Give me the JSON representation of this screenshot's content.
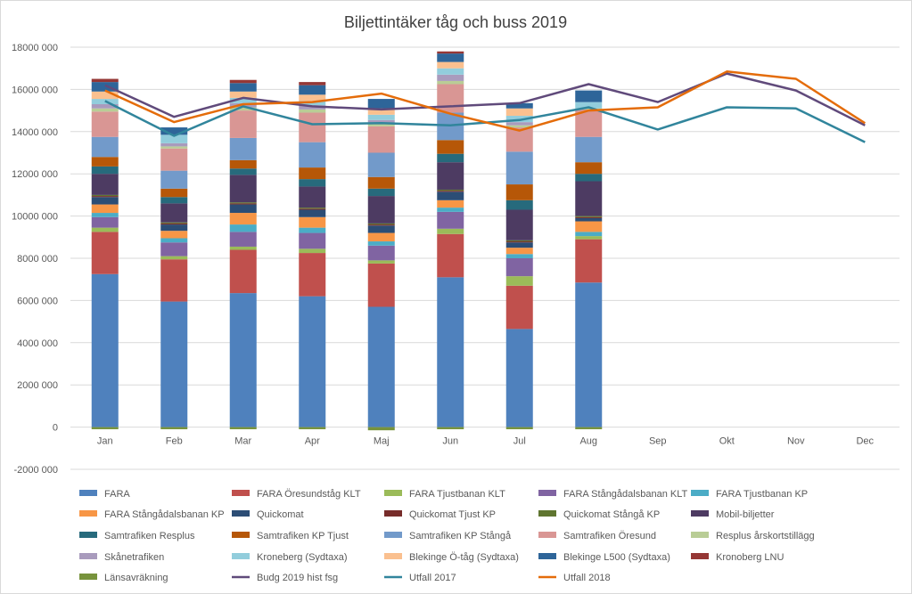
{
  "chart_data": {
    "type": "bar",
    "stacked": true,
    "title": "Biljettintäker tåg och buss 2019",
    "xlabel": "",
    "ylabel": "",
    "categories": [
      "Jan",
      "Feb",
      "Mar",
      "Apr",
      "Maj",
      "Jun",
      "Jul",
      "Aug",
      "Sep",
      "Okt",
      "Nov",
      "Dec"
    ],
    "ylim": [
      -2000000,
      18000000
    ],
    "yticks": [
      -2000000,
      0,
      2000000,
      4000000,
      6000000,
      8000000,
      10000000,
      12000000,
      14000000,
      16000000,
      18000000
    ],
    "ytick_labels": [
      "-2000 000",
      "0",
      "2000 000",
      "4000 000",
      "6000 000",
      "8000 000",
      "10000 000",
      "12000 000",
      "14000 000",
      "16000 000",
      "18000 000"
    ],
    "gridlines": true,
    "legend_position": "bottom",
    "series": [
      {
        "name": "FARA",
        "kind": "bar",
        "color": "#4f81bd",
        "values": [
          7250000,
          5950000,
          6350000,
          6200000,
          5700000,
          7100000,
          4650000,
          6850000,
          null,
          null,
          null,
          null
        ]
      },
      {
        "name": "FARA Öresundståg KLT",
        "kind": "bar",
        "color": "#c0504d",
        "values": [
          2000000,
          2000000,
          2050000,
          2050000,
          2050000,
          2050000,
          2050000,
          2050000,
          null,
          null,
          null,
          null
        ]
      },
      {
        "name": "FARA Tjustbanan KLT",
        "kind": "bar",
        "color": "#9bbb59",
        "values": [
          200000,
          150000,
          150000,
          200000,
          150000,
          250000,
          450000,
          150000,
          null,
          null,
          null,
          null
        ]
      },
      {
        "name": "FARA Stångådalsbanan KLT",
        "kind": "bar",
        "color": "#8064a2",
        "values": [
          500000,
          650000,
          700000,
          750000,
          700000,
          800000,
          850000,
          0,
          null,
          null,
          null,
          null
        ]
      },
      {
        "name": "FARA Tjustbanan KP",
        "kind": "bar",
        "color": "#4bacc6",
        "values": [
          200000,
          200000,
          350000,
          250000,
          200000,
          200000,
          200000,
          200000,
          null,
          null,
          null,
          null
        ]
      },
      {
        "name": "FARA Stångådalsbanan KP",
        "kind": "bar",
        "color": "#f79646",
        "values": [
          400000,
          350000,
          550000,
          500000,
          400000,
          350000,
          300000,
          500000,
          null,
          null,
          null,
          null
        ]
      },
      {
        "name": "Quickomat",
        "kind": "bar",
        "color": "#2c4d75",
        "values": [
          350000,
          300000,
          400000,
          350000,
          350000,
          400000,
          250000,
          150000,
          null,
          null,
          null,
          null
        ]
      },
      {
        "name": "Quickomat Tjust KP",
        "kind": "bar",
        "color": "#772c2a",
        "values": [
          50000,
          50000,
          50000,
          50000,
          50000,
          50000,
          50000,
          50000,
          null,
          null,
          null,
          null
        ]
      },
      {
        "name": "Quickomat Stångå KP",
        "kind": "bar",
        "color": "#5f7530",
        "values": [
          50000,
          50000,
          50000,
          50000,
          50000,
          50000,
          50000,
          50000,
          null,
          null,
          null,
          null
        ]
      },
      {
        "name": "Mobil-biljetter",
        "kind": "bar",
        "color": "#4d3b62",
        "values": [
          1000000,
          900000,
          1300000,
          1000000,
          1300000,
          1300000,
          1450000,
          1650000,
          null,
          null,
          null,
          null
        ]
      },
      {
        "name": "Samtrafiken Resplus",
        "kind": "bar",
        "color": "#276a7c",
        "values": [
          350000,
          300000,
          300000,
          350000,
          350000,
          400000,
          450000,
          350000,
          null,
          null,
          null,
          null
        ]
      },
      {
        "name": "Samtrafiken KP Tjust",
        "kind": "bar",
        "color": "#b65708",
        "values": [
          450000,
          400000,
          400000,
          550000,
          550000,
          650000,
          750000,
          550000,
          null,
          null,
          null,
          null
        ]
      },
      {
        "name": "Samtrafiken KP Stångå",
        "kind": "bar",
        "color": "#729aca",
        "values": [
          950000,
          850000,
          1050000,
          1200000,
          1150000,
          1300000,
          1550000,
          1200000,
          null,
          null,
          null,
          null
        ]
      },
      {
        "name": "Samtrafiken Öresund",
        "kind": "bar",
        "color": "#d99694",
        "values": [
          1200000,
          1050000,
          1300000,
          1400000,
          1250000,
          1350000,
          1150000,
          1300000,
          null,
          null,
          null,
          null
        ]
      },
      {
        "name": "Resplus årskortstillägg",
        "kind": "bar",
        "color": "#b9cd96",
        "values": [
          150000,
          100000,
          150000,
          150000,
          100000,
          150000,
          100000,
          50000,
          null,
          null,
          null,
          null
        ]
      },
      {
        "name": "Skånetrafiken",
        "kind": "bar",
        "color": "#a99bbd",
        "values": [
          200000,
          150000,
          200000,
          200000,
          200000,
          300000,
          150000,
          0,
          null,
          null,
          null,
          null
        ]
      },
      {
        "name": "Kroneberg (Sydtaxa)",
        "kind": "bar",
        "color": "#92cddc",
        "values": [
          250000,
          400000,
          250000,
          200000,
          250000,
          300000,
          300000,
          300000,
          null,
          null,
          null,
          null
        ]
      },
      {
        "name": "Blekinge Ö-tåg  (Sydtaxa)",
        "kind": "bar",
        "color": "#fac08f",
        "values": [
          350000,
          0,
          300000,
          300000,
          300000,
          300000,
          350000,
          0,
          null,
          null,
          null,
          null
        ]
      },
      {
        "name": "Blekinge L500  (Sydtaxa)",
        "kind": "bar",
        "color": "#2e6599",
        "values": [
          450000,
          350000,
          400000,
          450000,
          450000,
          400000,
          250000,
          550000,
          null,
          null,
          null,
          null
        ]
      },
      {
        "name": "Kronoberg LNU",
        "kind": "bar",
        "color": "#953735",
        "values": [
          150000,
          0,
          150000,
          150000,
          0,
          100000,
          0,
          0,
          null,
          null,
          null,
          null
        ]
      },
      {
        "name": "Länsavräkning",
        "kind": "bar",
        "color": "#77933c",
        "values": [
          -100000,
          -100000,
          -100000,
          -100000,
          -150000,
          -100000,
          -100000,
          -100000,
          null,
          null,
          null,
          null
        ]
      },
      {
        "name": "Budg 2019 hist fsg",
        "kind": "line",
        "color": "#604a7b",
        "values": [
          16200000,
          14700000,
          15600000,
          15200000,
          15050000,
          15200000,
          15350000,
          16250000,
          15400000,
          16750000,
          15950000,
          14300000
        ]
      },
      {
        "name": "Utfall 2017",
        "kind": "line",
        "color": "#31859c",
        "values": [
          15450000,
          13800000,
          15200000,
          14350000,
          14400000,
          14300000,
          14550000,
          15150000,
          14100000,
          15150000,
          15100000,
          13500000
        ]
      },
      {
        "name": "Utfall 2018",
        "kind": "line",
        "color": "#e46c0a",
        "values": [
          15950000,
          14450000,
          15300000,
          15400000,
          15800000,
          14850000,
          14050000,
          15000000,
          15150000,
          16850000,
          16500000,
          14400000
        ]
      }
    ]
  }
}
